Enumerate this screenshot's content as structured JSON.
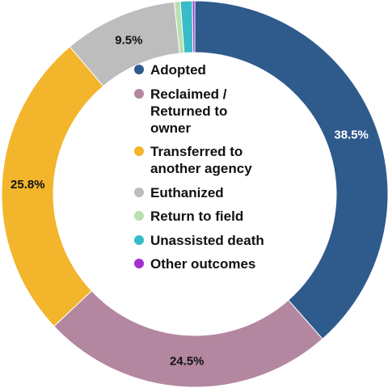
{
  "chart_data": {
    "type": "pie",
    "variant": "donut",
    "legend_position": "center",
    "title": "",
    "series": [
      {
        "name": "Adopted",
        "value": 38.5,
        "label": "38.5%",
        "color": "#2f5a8c"
      },
      {
        "name": "Reclaimed /\nReturned to\nowner",
        "value": 24.5,
        "label": "24.5%",
        "color": "#b3879f"
      },
      {
        "name": "Transferred to\nanother agency",
        "value": 25.8,
        "label": "25.8%",
        "color": "#f2b52c"
      },
      {
        "name": "Euthanized",
        "value": 9.5,
        "label": "9.5%",
        "color": "#bdbdbd"
      },
      {
        "name": "Return to field",
        "value": 0.5,
        "label": "",
        "color": "#b9e0b0"
      },
      {
        "name": "Unassisted death",
        "value": 1.0,
        "label": "",
        "color": "#38bcc9"
      },
      {
        "name": "Other outcomes",
        "value": 0.2,
        "label": "",
        "color": "#a12fd0"
      }
    ]
  }
}
